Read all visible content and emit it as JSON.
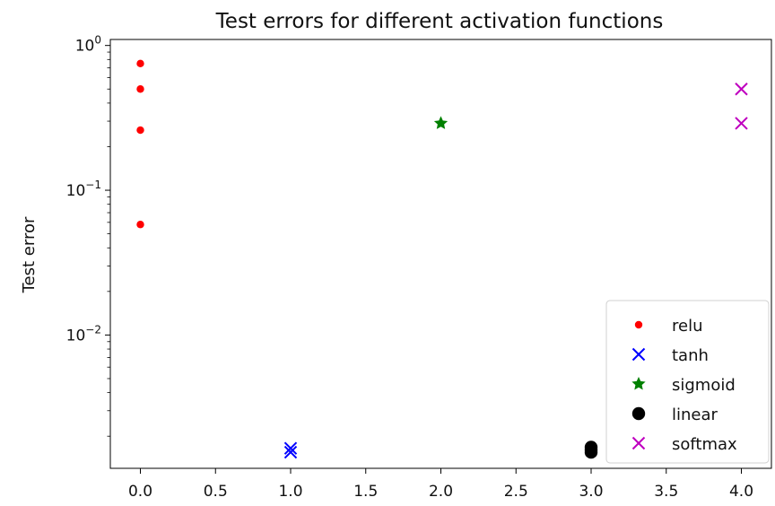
{
  "chart_data": {
    "type": "scatter",
    "title": "Test errors for different activation functions",
    "xlabel": "",
    "ylabel": "Test error",
    "xlim": [
      -0.2,
      4.2
    ],
    "ylim": [
      0.0012,
      1.1
    ],
    "yscale": "log",
    "grid": false,
    "legend_position": "lower right",
    "x_ticks": [
      0.0,
      0.5,
      1.0,
      1.5,
      2.0,
      2.5,
      3.0,
      3.5,
      4.0
    ],
    "x_tick_labels": [
      "0.0",
      "0.5",
      "1.0",
      "1.5",
      "2.0",
      "2.5",
      "3.0",
      "3.5",
      "4.0"
    ],
    "y_ticks": [
      1,
      0.1,
      0.01
    ],
    "y_tick_labels": [
      {
        "base": "10",
        "exp": "0"
      },
      {
        "base": "10",
        "exp": "−1"
      },
      {
        "base": "10",
        "exp": "−2"
      }
    ],
    "series": [
      {
        "name": "relu",
        "marker": "circle-small",
        "color": "#ff0000",
        "points": [
          {
            "x": 0,
            "y": 0.75
          },
          {
            "x": 0,
            "y": 0.5
          },
          {
            "x": 0,
            "y": 0.26
          },
          {
            "x": 0,
            "y": 0.058
          }
        ]
      },
      {
        "name": "tanh",
        "marker": "x",
        "color": "#0000ff",
        "points": [
          {
            "x": 1,
            "y": 0.00165
          },
          {
            "x": 1,
            "y": 0.00155
          }
        ]
      },
      {
        "name": "sigmoid",
        "marker": "star",
        "color": "#008000",
        "points": [
          {
            "x": 2,
            "y": 0.29
          }
        ]
      },
      {
        "name": "linear",
        "marker": "circle-large",
        "color": "#000000",
        "points": [
          {
            "x": 3,
            "y": 0.00168
          },
          {
            "x": 3,
            "y": 0.00161
          },
          {
            "x": 3,
            "y": 0.00155
          }
        ]
      },
      {
        "name": "softmax",
        "marker": "x",
        "color": "#bf00bf",
        "points": [
          {
            "x": 4,
            "y": 0.5
          },
          {
            "x": 4,
            "y": 0.29
          }
        ]
      }
    ]
  }
}
